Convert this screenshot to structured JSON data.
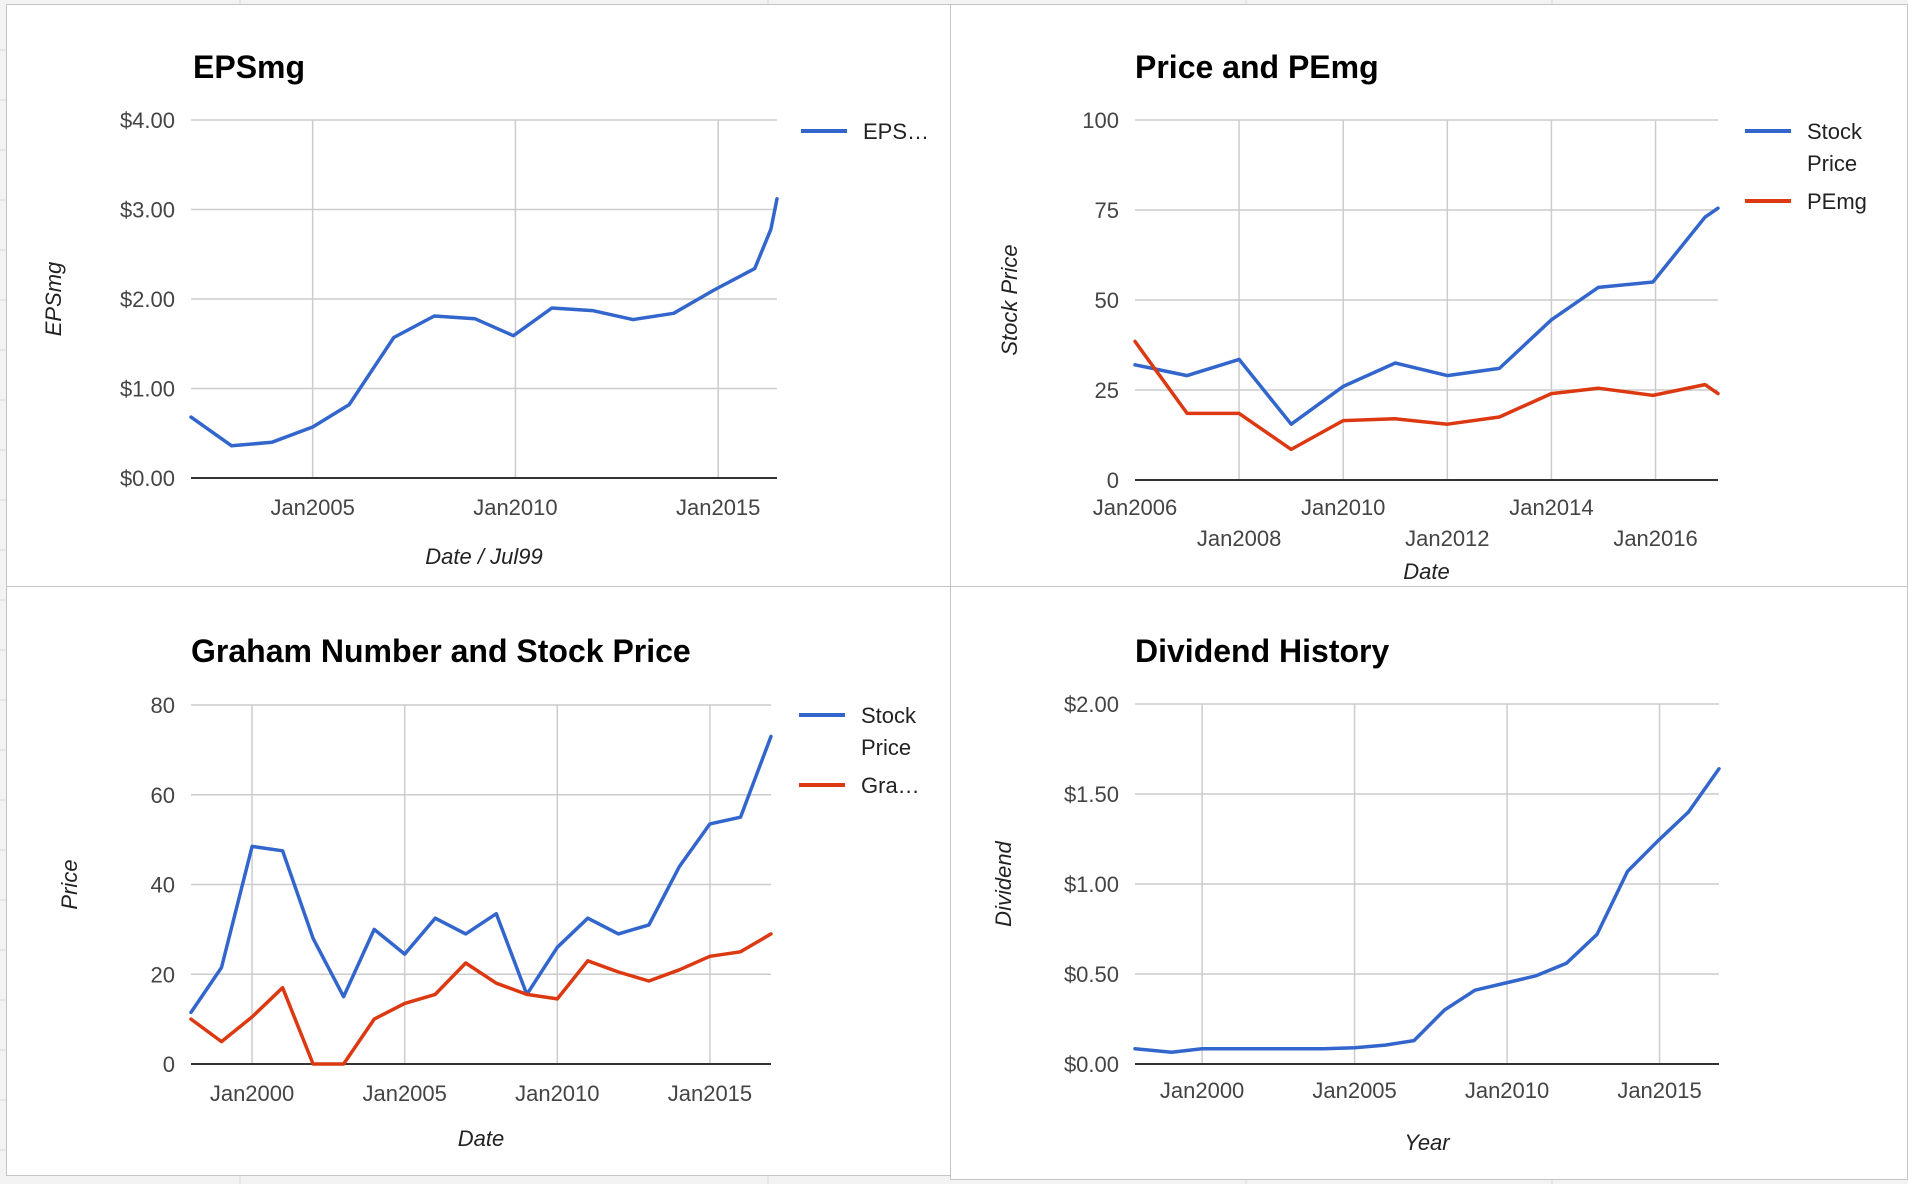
{
  "colors": {
    "blue": "#3366cc",
    "red": "#dc3912",
    "grid": "#cccccc",
    "axis": "#333333"
  },
  "chart_data": [
    {
      "type": "line",
      "title": "EPSmg",
      "xlabel": "Date / Jul99",
      "ylabel": "EPSmg",
      "xlim": [
        2002.0,
        2016.45
      ],
      "ylim": [
        0,
        4
      ],
      "yticks": [
        {
          "v": 0,
          "label": "$0.00"
        },
        {
          "v": 1,
          "label": "$1.00"
        },
        {
          "v": 2,
          "label": "$2.00"
        },
        {
          "v": 3,
          "label": "$3.00"
        },
        {
          "v": 4,
          "label": "$4.00"
        }
      ],
      "xticks": [
        {
          "v": 2005,
          "label": "Jan2005",
          "row": 0
        },
        {
          "v": 2010,
          "label": "Jan2010",
          "row": 0
        },
        {
          "v": 2015,
          "label": "Jan2015",
          "row": 0
        }
      ],
      "grid": true,
      "legend_position": "right",
      "series": [
        {
          "name": "EPS…",
          "color_key": "blue",
          "x": [
            2002.0,
            2003.0,
            2004.0,
            2005.0,
            2005.9,
            2007.0,
            2008.0,
            2009.0,
            2009.95,
            2010.9,
            2011.9,
            2012.9,
            2013.9,
            2014.9,
            2015.9,
            2016.3,
            2016.45
          ],
          "y": [
            0.68,
            0.36,
            0.4,
            0.57,
            0.82,
            1.57,
            1.81,
            1.78,
            1.59,
            1.9,
            1.87,
            1.77,
            1.84,
            2.1,
            2.34,
            2.78,
            3.12
          ]
        }
      ]
    },
    {
      "type": "line",
      "title": "Price and PEmg",
      "xlabel": "Date",
      "ylabel": "Stock Price",
      "xlim": [
        2006.0,
        2017.2
      ],
      "ylim": [
        0,
        100
      ],
      "yticks": [
        {
          "v": 0,
          "label": "0"
        },
        {
          "v": 25,
          "label": "25"
        },
        {
          "v": 50,
          "label": "50"
        },
        {
          "v": 75,
          "label": "75"
        },
        {
          "v": 100,
          "label": "100"
        }
      ],
      "xticks": [
        {
          "v": 2006,
          "label": "Jan2006",
          "row": 0
        },
        {
          "v": 2008,
          "label": "Jan2008",
          "row": 1
        },
        {
          "v": 2010,
          "label": "Jan2010",
          "row": 0
        },
        {
          "v": 2012,
          "label": "Jan2012",
          "row": 1
        },
        {
          "v": 2014,
          "label": "Jan2014",
          "row": 0
        },
        {
          "v": 2016,
          "label": "Jan2016",
          "row": 1
        }
      ],
      "grid": true,
      "legend_position": "right",
      "series": [
        {
          "name": "Stock Price",
          "color_key": "blue",
          "x": [
            2006.0,
            2007.0,
            2008.0,
            2009.0,
            2010.0,
            2011.0,
            2012.0,
            2013.0,
            2014.0,
            2014.9,
            2015.95,
            2016.95,
            2017.2
          ],
          "y": [
            32.0,
            29.0,
            33.5,
            15.5,
            26.0,
            32.5,
            29.0,
            31.0,
            44.5,
            53.5,
            55.0,
            73.0,
            75.5
          ]
        },
        {
          "name": "PEmg",
          "color_key": "red",
          "x": [
            2006.0,
            2007.0,
            2008.0,
            2009.0,
            2010.0,
            2011.0,
            2012.0,
            2013.0,
            2014.0,
            2014.9,
            2015.95,
            2016.95,
            2017.2
          ],
          "y": [
            38.5,
            18.5,
            18.5,
            8.5,
            16.5,
            17.0,
            15.5,
            17.5,
            24.0,
            25.5,
            23.5,
            26.5,
            24.0
          ]
        }
      ]
    },
    {
      "type": "line",
      "title": "Graham Number and Stock Price",
      "xlabel": "Date",
      "ylabel": "Price",
      "xlim": [
        1998.0,
        2017.0
      ],
      "ylim": [
        0,
        80
      ],
      "yticks": [
        {
          "v": 0,
          "label": "0"
        },
        {
          "v": 20,
          "label": "20"
        },
        {
          "v": 40,
          "label": "40"
        },
        {
          "v": 60,
          "label": "60"
        },
        {
          "v": 80,
          "label": "80"
        }
      ],
      "xticks": [
        {
          "v": 2000,
          "label": "Jan2000",
          "row": 0
        },
        {
          "v": 2005,
          "label": "Jan2005",
          "row": 0
        },
        {
          "v": 2010,
          "label": "Jan2010",
          "row": 0
        },
        {
          "v": 2015,
          "label": "Jan2015",
          "row": 0
        }
      ],
      "grid": true,
      "legend_position": "right",
      "series": [
        {
          "name": "Stock Price",
          "color_key": "blue",
          "x": [
            1998.0,
            1999.0,
            2000.0,
            2001.0,
            2002.0,
            2003.0,
            2004.0,
            2005.0,
            2006.0,
            2007.0,
            2008.0,
            2009.0,
            2010.0,
            2011.0,
            2012.0,
            2013.0,
            2014.0,
            2015.0,
            2016.0,
            2017.0
          ],
          "y": [
            11.5,
            21.5,
            48.5,
            47.5,
            28.0,
            15.0,
            30.0,
            24.5,
            32.5,
            29.0,
            33.5,
            15.5,
            26.0,
            32.5,
            29.0,
            31.0,
            44.0,
            53.5,
            55.0,
            73.0
          ]
        },
        {
          "name": "Gra…",
          "color_key": "red",
          "x": [
            1998.0,
            1999.0,
            2000.0,
            2001.0,
            2002.0,
            2003.0,
            2004.0,
            2005.0,
            2006.0,
            2007.0,
            2008.0,
            2009.0,
            2010.0,
            2011.0,
            2012.0,
            2013.0,
            2014.0,
            2015.0,
            2016.0,
            2017.0
          ],
          "y": [
            10.0,
            5.0,
            10.5,
            17.0,
            0.0,
            0.0,
            10.0,
            13.5,
            15.5,
            22.5,
            18.0,
            15.5,
            14.5,
            23.0,
            20.5,
            18.5,
            21.0,
            24.0,
            25.0,
            29.0
          ]
        }
      ]
    },
    {
      "type": "line",
      "title": "Dividend History",
      "xlabel": "Year",
      "ylabel": "Dividend",
      "xlim": [
        1997.8,
        2016.95
      ],
      "ylim": [
        0,
        2
      ],
      "yticks": [
        {
          "v": 0,
          "label": "$0.00"
        },
        {
          "v": 0.5,
          "label": "$0.50"
        },
        {
          "v": 1,
          "label": "$1.00"
        },
        {
          "v": 1.5,
          "label": "$1.50"
        },
        {
          "v": 2,
          "label": "$2.00"
        }
      ],
      "xticks": [
        {
          "v": 2000,
          "label": "Jan2000",
          "row": 0
        },
        {
          "v": 2005,
          "label": "Jan2005",
          "row": 0
        },
        {
          "v": 2010,
          "label": "Jan2010",
          "row": 0
        },
        {
          "v": 2015,
          "label": "Jan2015",
          "row": 0
        }
      ],
      "grid": true,
      "legend_position": "none",
      "series": [
        {
          "name": "",
          "color_key": "blue",
          "x": [
            1997.8,
            1999.0,
            2000.0,
            2001.0,
            2002.0,
            2003.0,
            2004.0,
            2005.0,
            2006.0,
            2006.95,
            2007.95,
            2008.95,
            2009.95,
            2010.95,
            2011.95,
            2012.95,
            2013.95,
            2014.95,
            2015.95,
            2016.95
          ],
          "y": [
            0.085,
            0.065,
            0.085,
            0.085,
            0.085,
            0.085,
            0.085,
            0.09,
            0.105,
            0.13,
            0.3,
            0.41,
            0.45,
            0.49,
            0.56,
            0.72,
            1.07,
            1.24,
            1.4,
            1.64
          ]
        }
      ]
    }
  ]
}
